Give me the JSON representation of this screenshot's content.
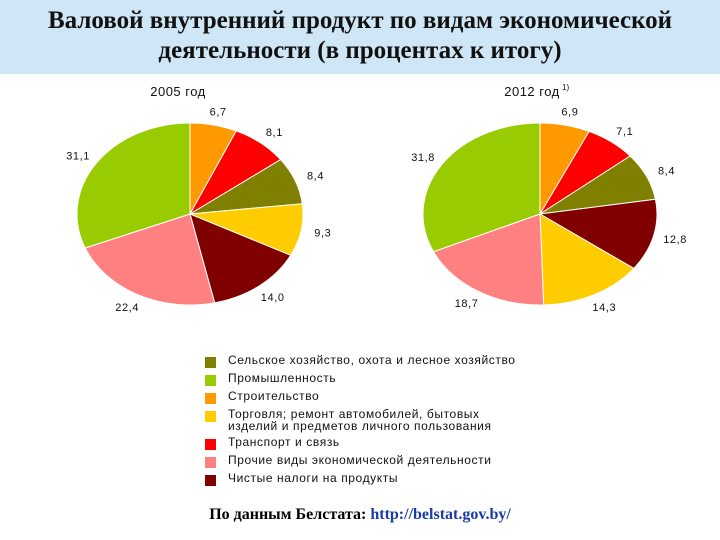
{
  "title": "Валовой внутренний продукт по видам экономической деятельности (в процентах к итогу)",
  "colors": {
    "agriculture": "#808000",
    "industry": "#99cc00",
    "construction": "#ff9900",
    "trade": "#ffcc00",
    "transport": "#ff0000",
    "other": "#ff8080",
    "taxes": "#800000"
  },
  "legend": [
    {
      "key": "agriculture",
      "label": "Сельское хозяйство, охота и лесное хозяйство"
    },
    {
      "key": "industry",
      "label": "Промышленность"
    },
    {
      "key": "construction",
      "label": "Строительство"
    },
    {
      "key": "trade",
      "label": "Торговля; ремонт автомобилей, бытовых\nизделий и предметов личного пользования"
    },
    {
      "key": "transport",
      "label": "Транспорт и связь"
    },
    {
      "key": "other",
      "label": "Прочие виды экономической деятельности"
    },
    {
      "key": "taxes",
      "label": "Чистые налоги на продукты"
    }
  ],
  "source": {
    "prefix": "По данным Белстата: ",
    "link": "http://belstat.gov.by/"
  },
  "chart_data": [
    {
      "type": "pie",
      "title": "2005 год",
      "slices": [
        {
          "key": "construction",
          "value": 6.7,
          "label": "6,7"
        },
        {
          "key": "transport",
          "value": 8.1,
          "label": "8,1"
        },
        {
          "key": "agriculture",
          "value": 8.4,
          "label": "8,4"
        },
        {
          "key": "trade",
          "value": 9.3,
          "label": "9,3"
        },
        {
          "key": "taxes",
          "value": 14.0,
          "label": "14,0"
        },
        {
          "key": "other",
          "value": 22.4,
          "label": "22,4"
        },
        {
          "key": "industry",
          "value": 31.1,
          "label": "31,1"
        }
      ]
    },
    {
      "type": "pie",
      "title": "2012 год",
      "footnote": "1)",
      "slices": [
        {
          "key": "construction",
          "value": 6.9,
          "label": "6,9"
        },
        {
          "key": "transport",
          "value": 7.1,
          "label": "7,1"
        },
        {
          "key": "agriculture",
          "value": 8.4,
          "label": "8,4"
        },
        {
          "key": "taxes",
          "value": 12.8,
          "label": "12,8"
        },
        {
          "key": "trade",
          "value": 14.3,
          "label": "14,3"
        },
        {
          "key": "other",
          "value": 18.7,
          "label": "18,7"
        },
        {
          "key": "industry",
          "value": 31.8,
          "label": "31,8"
        }
      ]
    }
  ]
}
